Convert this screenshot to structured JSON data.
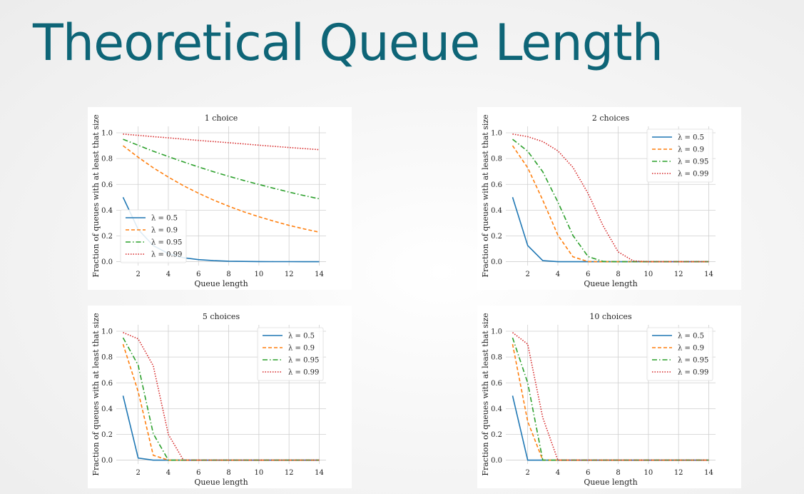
{
  "page": {
    "title": "Theoretical Queue Length"
  },
  "chart_data": [
    {
      "type": "line",
      "title": "1 choice",
      "xlabel": "Queue length",
      "ylabel": "Fraction of queues with at least that size",
      "x": [
        1,
        2,
        3,
        4,
        5,
        6,
        7,
        8,
        9,
        10,
        11,
        12,
        13,
        14
      ],
      "xlim": [
        0.55,
        14.45
      ],
      "ylim": [
        -0.03,
        1.05
      ],
      "xticks": [
        2,
        4,
        6,
        8,
        10,
        12,
        14
      ],
      "yticks": [
        0.0,
        0.2,
        0.4,
        0.6,
        0.8,
        1.0
      ],
      "grid": true,
      "legend_position": "lower-left",
      "series": [
        {
          "name": "λ = 0.5",
          "color": "#1f77b4",
          "dash": "solid",
          "values": [
            0.5,
            0.25,
            0.125,
            0.0625,
            0.031,
            0.016,
            0.008,
            0.004,
            0.002,
            0.001,
            0.0005,
            0.0002,
            0.0001,
            0.0001
          ]
        },
        {
          "name": "λ = 0.9",
          "color": "#ff7f0e",
          "dash": "dashed",
          "values": [
            0.9,
            0.81,
            0.729,
            0.656,
            0.59,
            0.531,
            0.478,
            0.43,
            0.387,
            0.349,
            0.314,
            0.282,
            0.254,
            0.229
          ]
        },
        {
          "name": "λ = 0.95",
          "color": "#2ca02c",
          "dash": "dashdot",
          "values": [
            0.95,
            0.903,
            0.857,
            0.815,
            0.774,
            0.735,
            0.698,
            0.663,
            0.63,
            0.599,
            0.569,
            0.54,
            0.513,
            0.488
          ]
        },
        {
          "name": "λ = 0.99",
          "color": "#d62728",
          "dash": "dotted",
          "values": [
            0.99,
            0.98,
            0.97,
            0.961,
            0.951,
            0.941,
            0.932,
            0.923,
            0.914,
            0.904,
            0.895,
            0.886,
            0.878,
            0.869
          ]
        }
      ]
    },
    {
      "type": "line",
      "title": "2 choices",
      "xlabel": "Queue length",
      "ylabel": "Fraction of queues with at least that size",
      "x": [
        1,
        2,
        3,
        4,
        5,
        6,
        7,
        8,
        9,
        10,
        11,
        12,
        13,
        14
      ],
      "xlim": [
        0.55,
        14.45
      ],
      "ylim": [
        -0.03,
        1.05
      ],
      "xticks": [
        2,
        4,
        6,
        8,
        10,
        12,
        14
      ],
      "yticks": [
        0.0,
        0.2,
        0.4,
        0.6,
        0.8,
        1.0
      ],
      "grid": true,
      "legend_position": "upper-right",
      "series": [
        {
          "name": "λ = 0.5",
          "color": "#1f77b4",
          "dash": "solid",
          "values": [
            0.5,
            0.125,
            0.008,
            0.0,
            0.0,
            0.0,
            0.0,
            0.0,
            0.0,
            0.0,
            0.0,
            0.0,
            0.0,
            0.0
          ]
        },
        {
          "name": "λ = 0.9",
          "color": "#ff7f0e",
          "dash": "dashed",
          "values": [
            0.9,
            0.729,
            0.478,
            0.206,
            0.038,
            0.001,
            0.0,
            0.0,
            0.0,
            0.0,
            0.0,
            0.0,
            0.0,
            0.0
          ]
        },
        {
          "name": "λ = 0.95",
          "color": "#2ca02c",
          "dash": "dashdot",
          "values": [
            0.95,
            0.857,
            0.698,
            0.463,
            0.204,
            0.04,
            0.002,
            0.0,
            0.0,
            0.0,
            0.0,
            0.0,
            0.0,
            0.0
          ]
        },
        {
          "name": "λ = 0.99",
          "color": "#d62728",
          "dash": "dotted",
          "values": [
            0.99,
            0.97,
            0.932,
            0.86,
            0.732,
            0.53,
            0.278,
            0.076,
            0.006,
            0.0,
            0.0,
            0.0,
            0.0,
            0.0
          ]
        }
      ]
    },
    {
      "type": "line",
      "title": "5 choices",
      "xlabel": "Queue length",
      "ylabel": "Fraction of queues with at least that size",
      "x": [
        1,
        2,
        3,
        4,
        5,
        6,
        7,
        8,
        9,
        10,
        11,
        12,
        13,
        14
      ],
      "xlim": [
        0.55,
        14.45
      ],
      "ylim": [
        -0.03,
        1.05
      ],
      "xticks": [
        2,
        4,
        6,
        8,
        10,
        12,
        14
      ],
      "yticks": [
        0.0,
        0.2,
        0.4,
        0.6,
        0.8,
        1.0
      ],
      "grid": true,
      "legend_position": "upper-right",
      "series": [
        {
          "name": "λ = 0.5",
          "color": "#1f77b4",
          "dash": "solid",
          "values": [
            0.5,
            0.016,
            0.0,
            0.0,
            0.0,
            0.0,
            0.0,
            0.0,
            0.0,
            0.0,
            0.0,
            0.0,
            0.0,
            0.0
          ]
        },
        {
          "name": "λ = 0.9",
          "color": "#ff7f0e",
          "dash": "dashed",
          "values": [
            0.9,
            0.531,
            0.038,
            0.0,
            0.0,
            0.0,
            0.0,
            0.0,
            0.0,
            0.0,
            0.0,
            0.0,
            0.0,
            0.0
          ]
        },
        {
          "name": "λ = 0.95",
          "color": "#2ca02c",
          "dash": "dashdot",
          "values": [
            0.95,
            0.736,
            0.206,
            0.0,
            0.0,
            0.0,
            0.0,
            0.0,
            0.0,
            0.0,
            0.0,
            0.0,
            0.0,
            0.0
          ]
        },
        {
          "name": "λ = 0.99",
          "color": "#d62728",
          "dash": "dotted",
          "values": [
            0.99,
            0.941,
            0.732,
            0.2,
            0.0,
            0.0,
            0.0,
            0.0,
            0.0,
            0.0,
            0.0,
            0.0,
            0.0,
            0.0
          ]
        }
      ]
    },
    {
      "type": "line",
      "title": "10 choices",
      "xlabel": "Queue length",
      "ylabel": "Fraction of queues with at least that size",
      "x": [
        1,
        2,
        3,
        4,
        5,
        6,
        7,
        8,
        9,
        10,
        11,
        12,
        13,
        14
      ],
      "xlim": [
        0.55,
        14.45
      ],
      "ylim": [
        -0.03,
        1.05
      ],
      "xticks": [
        2,
        4,
        6,
        8,
        10,
        12,
        14
      ],
      "yticks": [
        0.0,
        0.2,
        0.4,
        0.6,
        0.8,
        1.0
      ],
      "grid": true,
      "legend_position": "upper-right",
      "series": [
        {
          "name": "λ = 0.5",
          "color": "#1f77b4",
          "dash": "solid",
          "values": [
            0.5,
            0.0,
            0.0,
            0.0,
            0.0,
            0.0,
            0.0,
            0.0,
            0.0,
            0.0,
            0.0,
            0.0,
            0.0,
            0.0
          ]
        },
        {
          "name": "λ = 0.9",
          "color": "#ff7f0e",
          "dash": "dashed",
          "values": [
            0.9,
            0.3,
            0.0,
            0.0,
            0.0,
            0.0,
            0.0,
            0.0,
            0.0,
            0.0,
            0.0,
            0.0,
            0.0,
            0.0
          ]
        },
        {
          "name": "λ = 0.95",
          "color": "#2ca02c",
          "dash": "dashdot",
          "values": [
            0.95,
            0.6,
            0.0,
            0.0,
            0.0,
            0.0,
            0.0,
            0.0,
            0.0,
            0.0,
            0.0,
            0.0,
            0.0,
            0.0
          ]
        },
        {
          "name": "λ = 0.99",
          "color": "#d62728",
          "dash": "dotted",
          "values": [
            0.99,
            0.9,
            0.33,
            0.0,
            0.0,
            0.0,
            0.0,
            0.0,
            0.0,
            0.0,
            0.0,
            0.0,
            0.0,
            0.0
          ]
        }
      ]
    }
  ]
}
